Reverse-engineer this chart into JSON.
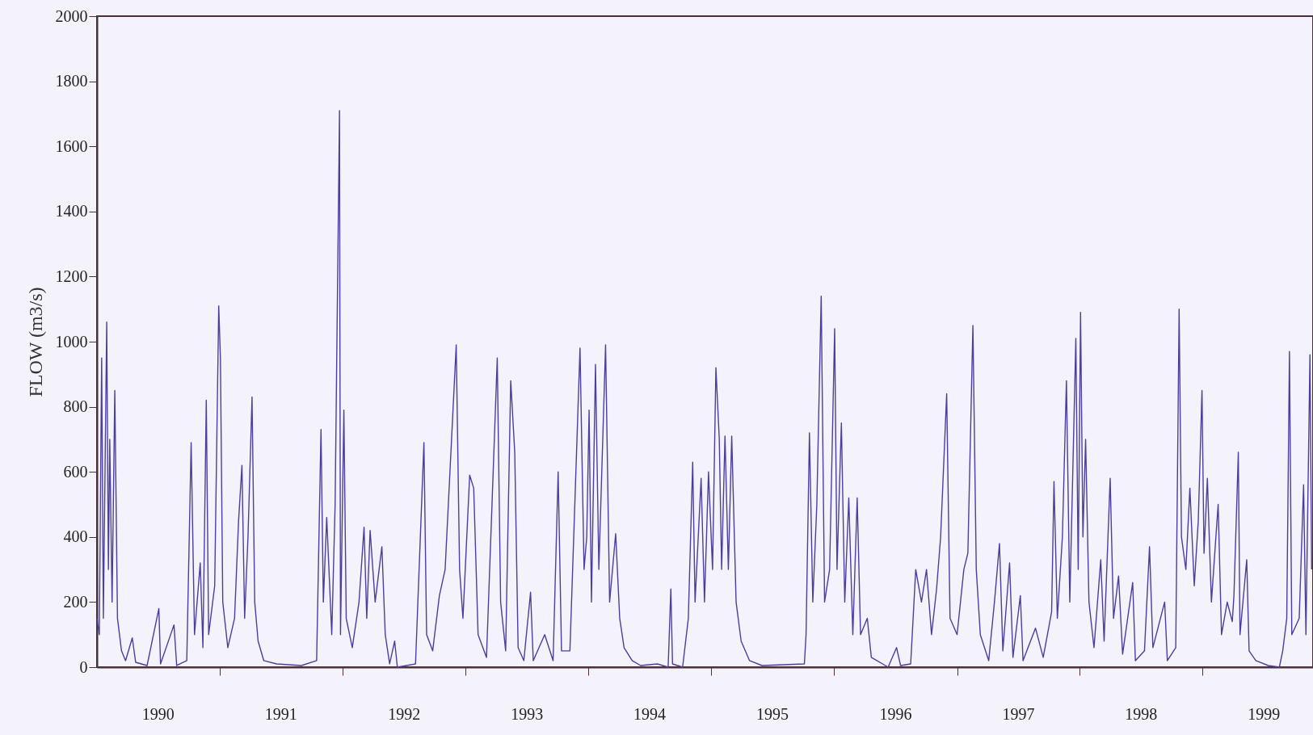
{
  "chart_data": {
    "type": "line",
    "ylabel": "FLOW (m3/s)",
    "xlim": [
      "1990-01-01",
      "1999-11-25"
    ],
    "xticks": [
      {
        "value": "1990-07-01",
        "label": "1990"
      },
      {
        "value": "1991-01-01",
        "label": null
      },
      {
        "value": "1991-07-01",
        "label": "1991"
      },
      {
        "value": "1992-01-01",
        "label": null
      },
      {
        "value": "1992-07-01",
        "label": "1992"
      },
      {
        "value": "1993-01-01",
        "label": null
      },
      {
        "value": "1993-07-01",
        "label": "1993"
      },
      {
        "value": "1994-01-01",
        "label": null
      },
      {
        "value": "1994-07-01",
        "label": "1994"
      },
      {
        "value": "1995-01-01",
        "label": null
      },
      {
        "value": "1995-07-01",
        "label": "1995"
      },
      {
        "value": "1996-01-01",
        "label": null
      },
      {
        "value": "1996-07-01",
        "label": "1996"
      },
      {
        "value": "1997-01-01",
        "label": null
      },
      {
        "value": "1997-07-01",
        "label": "1997"
      },
      {
        "value": "1998-01-01",
        "label": null
      },
      {
        "value": "1998-07-01",
        "label": "1998"
      },
      {
        "value": "1999-01-01",
        "label": null
      },
      {
        "value": "1999-07-01",
        "label": "1999"
      }
    ],
    "ylim": [
      0,
      2000
    ],
    "yticks": [
      0,
      200,
      400,
      600,
      800,
      1000,
      1200,
      1400,
      1600,
      1800,
      2000
    ],
    "grid": false,
    "marker": "none",
    "line_style": "solid",
    "series": [
      {
        "color": "#4b3f9e",
        "x": [
          "1990-01-01",
          "1990-01-08",
          "1990-01-15",
          "1990-01-20",
          "1990-01-30",
          "1990-02-04",
          "1990-02-08",
          "1990-02-15",
          "1990-02-23",
          "1990-03-03",
          "1990-03-15",
          "1990-03-27",
          "1990-04-16",
          "1990-04-26",
          "1990-05-30",
          "1990-07-04",
          "1990-07-09",
          "1990-08-18",
          "1990-08-26",
          "1990-09-25",
          "1990-10-08",
          "1990-10-18",
          "1990-11-04",
          "1990-11-12",
          "1990-11-22",
          "1990-11-29",
          "1990-12-17",
          "1990-12-29",
          "1991-01-03",
          "1991-01-10",
          "1991-01-25",
          "1991-02-14",
          "1991-02-26",
          "1991-03-08",
          "1991-03-16",
          "1991-03-26",
          "1991-04-07",
          "1991-04-15",
          "1991-04-25",
          "1991-05-12",
          "1991-06-19",
          "1991-09-01",
          "1991-10-16",
          "1991-10-29",
          "1991-11-05",
          "1991-11-15",
          "1991-11-30",
          "1991-12-10",
          "1991-12-23",
          "1991-12-26",
          "1992-01-05",
          "1992-01-12",
          "1992-01-30",
          "1992-02-19",
          "1992-03-05",
          "1992-03-13",
          "1992-03-23",
          "1992-04-07",
          "1992-04-27",
          "1992-05-07",
          "1992-05-20",
          "1992-06-04",
          "1992-06-12",
          "1992-08-05",
          "1992-08-30",
          "1992-09-07",
          "1992-09-25",
          "1992-10-15",
          "1992-11-01",
          "1992-12-04",
          "1992-12-14",
          "1992-12-24",
          "1993-01-13",
          "1993-01-25",
          "1993-02-07",
          "1993-03-04",
          "1993-04-05",
          "1993-04-15",
          "1993-04-30",
          "1993-05-15",
          "1993-05-27",
          "1993-06-06",
          "1993-06-23",
          "1993-07-13",
          "1993-07-21",
          "1993-08-24",
          "1993-09-18",
          "1993-10-03",
          "1993-10-13",
          "1993-11-07",
          "1993-12-07",
          "1993-12-19",
          "1993-12-27",
          "1994-01-03",
          "1994-01-10",
          "1994-01-22",
          "1994-02-01",
          "1994-02-21",
          "1994-03-05",
          "1994-03-23",
          "1994-04-04",
          "1994-04-17",
          "1994-05-11",
          "1994-06-05",
          "1994-07-25",
          "1994-08-26",
          "1994-09-03",
          "1994-09-08",
          "1994-10-08",
          "1994-10-25",
          "1994-11-07",
          "1994-11-14",
          "1994-12-02",
          "1994-12-12",
          "1994-12-24",
          "1995-01-05",
          "1995-01-15",
          "1995-01-25",
          "1995-02-01",
          "1995-02-11",
          "1995-02-21",
          "1995-03-03",
          "1995-03-16",
          "1995-03-31",
          "1995-04-25",
          "1995-06-01",
          "1995-10-05",
          "1995-10-10",
          "1995-10-20",
          "1995-10-30",
          "1995-11-11",
          "1995-11-24",
          "1995-12-04",
          "1995-12-19",
          "1996-01-03",
          "1996-01-10",
          "1996-01-23",
          "1996-02-02",
          "1996-02-14",
          "1996-02-26",
          "1996-03-10",
          "1996-03-20",
          "1996-04-09",
          "1996-04-21",
          "1996-06-10",
          "1996-07-05",
          "1996-07-17",
          "1996-08-16",
          "1996-08-31",
          "1996-09-17",
          "1996-10-02",
          "1996-10-17",
          "1996-11-01",
          "1996-11-13",
          "1996-12-01",
          "1996-12-11",
          "1997-01-01",
          "1997-01-21",
          "1997-02-02",
          "1997-02-17",
          "1997-02-27",
          "1997-03-11",
          "1997-04-05",
          "1997-04-22",
          "1997-05-07",
          "1997-05-17",
          "1997-06-06",
          "1997-06-16",
          "1997-07-08",
          "1997-07-16",
          "1997-08-22",
          "1997-09-14",
          "1997-10-09",
          "1997-10-16",
          "1997-10-26",
          "1997-11-10",
          "1997-11-22",
          "1997-12-02",
          "1997-12-20",
          "1997-12-27",
          "1998-01-03",
          "1998-01-10",
          "1998-01-18",
          "1998-01-28",
          "1998-02-12",
          "1998-03-04",
          "1998-03-14",
          "1998-04-01",
          "1998-04-11",
          "1998-04-26",
          "1998-05-08",
          "1998-06-07",
          "1998-06-15",
          "1998-07-12",
          "1998-07-27",
          "1998-08-06",
          "1998-09-10",
          "1998-09-18",
          "1998-10-13",
          "1998-10-23",
          "1998-10-30",
          "1998-11-12",
          "1998-11-24",
          "1998-12-07",
          "1998-12-19",
          "1998-12-30",
          "1999-01-05",
          "1999-01-15",
          "1999-01-27",
          "1999-02-16",
          "1999-02-26",
          "1999-03-15",
          "1999-03-30",
          "1999-04-04",
          "1999-04-17",
          "1999-04-22",
          "1999-05-12",
          "1999-05-19",
          "1999-06-08",
          "1999-07-15",
          "1999-08-17",
          "1999-08-27",
          "1999-09-08",
          "1999-09-16",
          "1999-09-23",
          "1999-10-15",
          "1999-10-28",
          "1999-11-04",
          "1999-11-16",
          "1999-11-21"
        ],
        "values": [
          150,
          100,
          950,
          150,
          1060,
          300,
          700,
          200,
          850,
          150,
          50,
          20,
          90,
          15,
          5,
          180,
          10,
          130,
          5,
          20,
          690,
          100,
          320,
          60,
          820,
          100,
          250,
          1110,
          950,
          200,
          60,
          150,
          450,
          620,
          150,
          400,
          830,
          200,
          80,
          20,
          10,
          5,
          20,
          730,
          200,
          460,
          100,
          500,
          1710,
          100,
          790,
          150,
          60,
          200,
          430,
          150,
          420,
          200,
          370,
          100,
          10,
          80,
          0,
          10,
          690,
          100,
          50,
          220,
          300,
          990,
          300,
          150,
          590,
          550,
          100,
          30,
          950,
          200,
          50,
          880,
          660,
          60,
          20,
          230,
          20,
          100,
          20,
          600,
          50,
          50,
          980,
          300,
          400,
          790,
          200,
          930,
          300,
          990,
          200,
          410,
          150,
          60,
          20,
          5,
          10,
          0,
          240,
          10,
          0,
          150,
          630,
          200,
          580,
          200,
          600,
          300,
          920,
          700,
          300,
          710,
          300,
          710,
          200,
          80,
          20,
          5,
          10,
          100,
          720,
          200,
          500,
          1140,
          200,
          300,
          1040,
          300,
          750,
          200,
          520,
          100,
          520,
          100,
          150,
          30,
          0,
          60,
          5,
          10,
          300,
          200,
          300,
          100,
          240,
          400,
          840,
          150,
          100,
          300,
          350,
          1050,
          300,
          100,
          20,
          200,
          380,
          50,
          320,
          30,
          220,
          20,
          120,
          30,
          170,
          570,
          150,
          400,
          880,
          200,
          1010,
          300,
          1090,
          400,
          700,
          200,
          60,
          330,
          80,
          580,
          150,
          280,
          40,
          260,
          20,
          50,
          370,
          60,
          200,
          20,
          60,
          1100,
          400,
          300,
          550,
          250,
          450,
          850,
          350,
          580,
          200,
          500,
          100,
          200,
          140,
          220,
          660,
          100,
          330,
          50,
          20,
          5,
          0,
          50,
          150,
          970,
          100,
          150,
          560,
          100,
          960,
          300
        ]
      }
    ]
  }
}
